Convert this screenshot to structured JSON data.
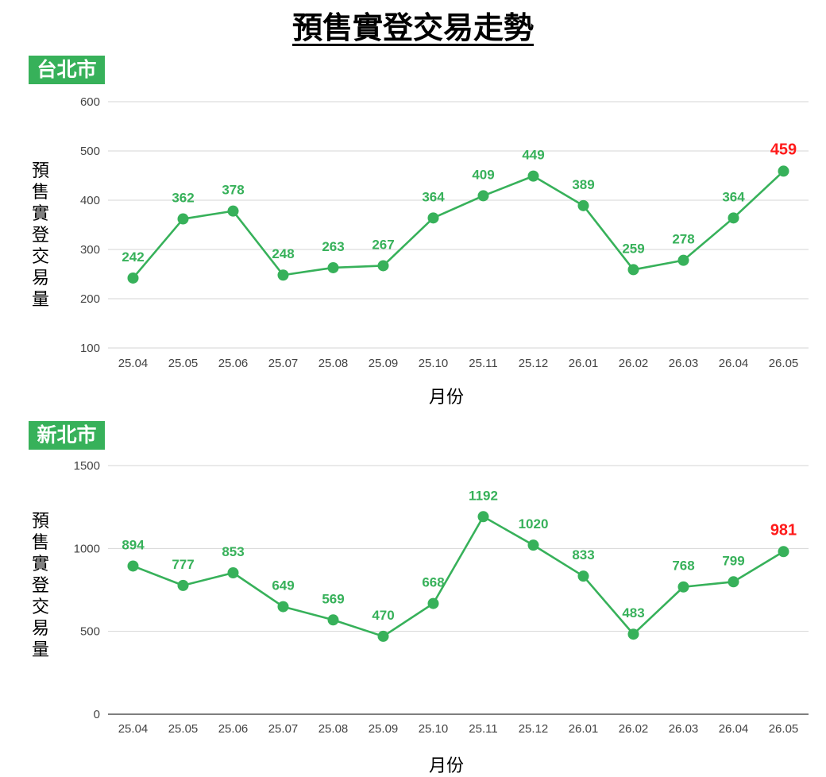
{
  "title": "預售實登交易走勢",
  "chart_data": [
    {
      "type": "line",
      "city": "台北市",
      "xlabel": "月份",
      "ylabel": "預售實登交易量",
      "ylim": [
        100,
        600
      ],
      "yticks": [
        100,
        200,
        300,
        400,
        500,
        600
      ],
      "grid": true,
      "categories": [
        "25.04",
        "25.05",
        "25.06",
        "25.07",
        "25.08",
        "25.09",
        "25.10",
        "25.11",
        "25.12",
        "26.01",
        "26.02",
        "26.03",
        "26.04",
        "26.05"
      ],
      "values": [
        242,
        362,
        378,
        248,
        263,
        267,
        364,
        409,
        449,
        389,
        259,
        278,
        364,
        459
      ],
      "highlight_index": 13,
      "colors": {
        "line": "#37b15a",
        "highlight": "#ff1a1a"
      }
    },
    {
      "type": "line",
      "city": "新北市",
      "xlabel": "月份",
      "ylabel": "預售實登交易量",
      "ylim": [
        0,
        1500
      ],
      "yticks": [
        0,
        500,
        1000,
        1500
      ],
      "grid": true,
      "categories": [
        "25.04",
        "25.05",
        "25.06",
        "25.07",
        "25.08",
        "25.09",
        "25.10",
        "25.11",
        "25.12",
        "26.01",
        "26.02",
        "26.03",
        "26.04",
        "26.05"
      ],
      "values": [
        894,
        777,
        853,
        649,
        569,
        470,
        668,
        1192,
        1020,
        833,
        483,
        768,
        799,
        981
      ],
      "highlight_index": 13,
      "colors": {
        "line": "#37b15a",
        "highlight": "#ff1a1a"
      }
    }
  ]
}
